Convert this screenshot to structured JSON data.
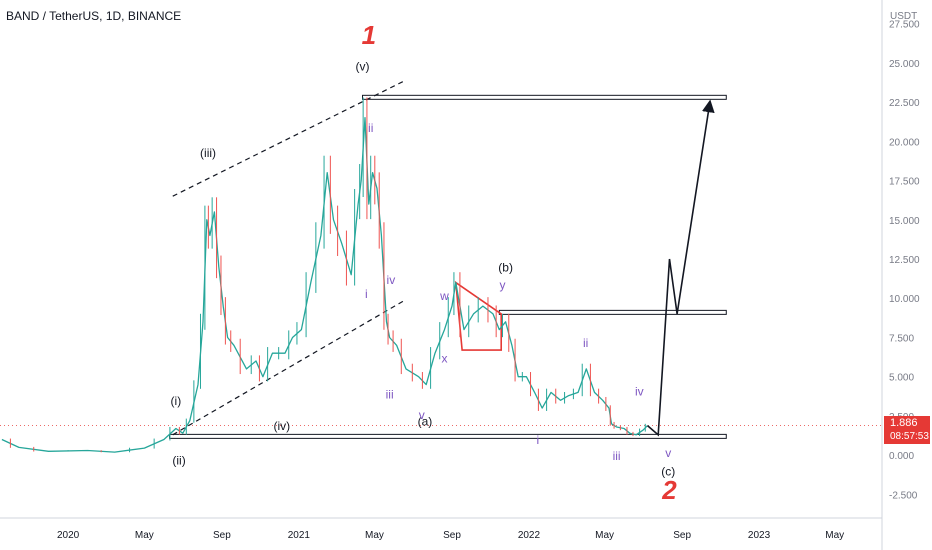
{
  "header": {
    "title": "BAND / TetherUS, 1D, BINANCE"
  },
  "axis": {
    "currency_label": "USDT"
  },
  "price_tag": {
    "price": "1.886",
    "countdown": "08:57:53"
  },
  "chart_data": {
    "type": "line",
    "title": "BAND / TetherUS, 1D, BINANCE",
    "ylabel": "USDT",
    "ylim": [
      -4,
      29
    ],
    "y_ticks": [
      "-2.500",
      "0.000",
      "2.500",
      "5.000",
      "7.500",
      "10.000",
      "12.500",
      "15.000",
      "17.500",
      "20.000",
      "22.500",
      "25.000",
      "27.500"
    ],
    "y_tick_values": [
      -2.5,
      0,
      2.5,
      5,
      7.5,
      10,
      12.5,
      15,
      17.5,
      20,
      22.5,
      25,
      27.5
    ],
    "x_ticks": [
      "2020",
      "May",
      "Sep",
      "2021",
      "May",
      "Sep",
      "2022",
      "May",
      "Sep",
      "2023",
      "May"
    ],
    "x_tick_dates": [
      "2020-01-01",
      "2020-05-01",
      "2020-09-01",
      "2021-01-01",
      "2021-05-01",
      "2021-09-01",
      "2022-01-01",
      "2022-05-01",
      "2022-09-01",
      "2023-01-01",
      "2023-05-01"
    ],
    "xlim": [
      "2019-09-15",
      "2023-07-15"
    ],
    "grid": false,
    "series": [
      {
        "points": [
          [
            "2019-09-18",
            1.0
          ],
          [
            "2019-10-15",
            0.5
          ],
          [
            "2019-12-01",
            0.25
          ],
          [
            "2020-02-01",
            0.3
          ],
          [
            "2020-03-15",
            0.2
          ],
          [
            "2020-05-01",
            0.45
          ],
          [
            "2020-06-01",
            1.0
          ],
          [
            "2020-06-20",
            1.7
          ],
          [
            "2020-07-01",
            1.4
          ],
          [
            "2020-07-12",
            2.2
          ],
          [
            "2020-07-25",
            4.5
          ],
          [
            "2020-08-02",
            8.5
          ],
          [
            "2020-08-08",
            15.0
          ],
          [
            "2020-08-13",
            14.0
          ],
          [
            "2020-08-20",
            15.5
          ],
          [
            "2020-08-27",
            12.0
          ],
          [
            "2020-09-03",
            9.5
          ],
          [
            "2020-09-10",
            7.5
          ],
          [
            "2020-09-20",
            7.0
          ],
          [
            "2020-10-10",
            5.5
          ],
          [
            "2020-10-25",
            6.0
          ],
          [
            "2020-11-05",
            5.0
          ],
          [
            "2020-11-20",
            6.5
          ],
          [
            "2020-12-10",
            6.5
          ],
          [
            "2020-12-22",
            7.5
          ],
          [
            "2021-01-05",
            8.0
          ],
          [
            "2021-01-20",
            11.0
          ],
          [
            "2021-02-05",
            14.0
          ],
          [
            "2021-02-15",
            18.0
          ],
          [
            "2021-02-25",
            15.0
          ],
          [
            "2021-03-10",
            13.5
          ],
          [
            "2021-03-25",
            11.5
          ],
          [
            "2021-04-05",
            16.0
          ],
          [
            "2021-04-10",
            17.5
          ],
          [
            "2021-04-16",
            21.5
          ],
          [
            "2021-04-22",
            16.0
          ],
          [
            "2021-04-28",
            18.0
          ],
          [
            "2021-05-05",
            17.0
          ],
          [
            "2021-05-12",
            14.0
          ],
          [
            "2021-05-20",
            8.5
          ],
          [
            "2021-05-25",
            7.5
          ],
          [
            "2021-06-05",
            7.0
          ],
          [
            "2021-06-20",
            5.5
          ],
          [
            "2021-07-10",
            5.0
          ],
          [
            "2021-07-22",
            4.5
          ],
          [
            "2021-08-05",
            6.5
          ],
          [
            "2021-08-20",
            8.0
          ],
          [
            "2021-09-01",
            9.5
          ],
          [
            "2021-09-07",
            11.0
          ],
          [
            "2021-09-20",
            8.0
          ],
          [
            "2021-10-05",
            9.0
          ],
          [
            "2021-10-20",
            9.5
          ],
          [
            "2021-11-05",
            9.0
          ],
          [
            "2021-11-15",
            8.0
          ],
          [
            "2021-11-25",
            8.5
          ],
          [
            "2021-12-05",
            7.0
          ],
          [
            "2021-12-15",
            5.0
          ],
          [
            "2021-12-28",
            5.0
          ],
          [
            "2022-01-10",
            4.0
          ],
          [
            "2022-01-22",
            3.0
          ],
          [
            "2022-02-05",
            4.0
          ],
          [
            "2022-02-20",
            3.5
          ],
          [
            "2022-03-05",
            3.8
          ],
          [
            "2022-03-20",
            4.0
          ],
          [
            "2022-04-02",
            5.5
          ],
          [
            "2022-04-15",
            4.0
          ],
          [
            "2022-04-28",
            3.5
          ],
          [
            "2022-05-08",
            3.0
          ],
          [
            "2022-05-12",
            2.0
          ],
          [
            "2022-05-20",
            1.8
          ],
          [
            "2022-06-01",
            1.7
          ],
          [
            "2022-06-10",
            1.4
          ],
          [
            "2022-06-20",
            1.3
          ],
          [
            "2022-07-01",
            1.6
          ],
          [
            "2022-07-08",
            1.886
          ]
        ]
      }
    ],
    "projection_path": [
      [
        "2022-07-08",
        1.886
      ],
      [
        "2022-07-25",
        1.3
      ],
      [
        "2022-08-12",
        12.5
      ],
      [
        "2022-08-24",
        9.0
      ],
      [
        "2022-10-15",
        22.5
      ]
    ],
    "horizontal_levels": [
      {
        "price": 22.8,
        "from": "2021-04-12",
        "to": "2022-11-10"
      },
      {
        "price": 9.1,
        "from": "2021-11-15",
        "to": "2022-11-10"
      },
      {
        "price": 1.2,
        "from": "2020-06-10",
        "to": "2022-11-10"
      }
    ],
    "trend_channel": {
      "upper": [
        [
          "2020-06-15",
          16.5
        ],
        [
          "2021-06-15",
          23.8
        ]
      ],
      "lower": [
        [
          "2020-06-15",
          1.3
        ],
        [
          "2021-06-15",
          9.8
        ]
      ]
    },
    "triangle": [
      [
        "2021-09-07",
        11.0
      ],
      [
        "2021-11-18",
        9.0
      ],
      [
        "2021-11-18",
        6.7
      ],
      [
        "2021-09-17",
        6.7
      ]
    ],
    "wave_labels": [
      {
        "text": "1",
        "date": "2021-04-22",
        "price": 26.2,
        "color": "#e53935",
        "size": "big"
      },
      {
        "text": "2",
        "date": "2022-08-12",
        "price": -2.8,
        "color": "#e53935",
        "size": "big"
      },
      {
        "text": "(v)",
        "date": "2021-04-12",
        "price": 24.5,
        "color": "#131722",
        "size": "normal"
      },
      {
        "text": "(iii)",
        "date": "2020-08-10",
        "price": 19.0,
        "color": "#131722",
        "size": "normal"
      },
      {
        "text": "(i)",
        "date": "2020-06-20",
        "price": 3.2,
        "color": "#131722",
        "size": "normal"
      },
      {
        "text": "(ii)",
        "date": "2020-06-25",
        "price": -0.6,
        "color": "#131722",
        "size": "normal"
      },
      {
        "text": "(iv)",
        "date": "2020-12-05",
        "price": 1.6,
        "color": "#131722",
        "size": "normal"
      },
      {
        "text": "(a)",
        "date": "2021-07-20",
        "price": 1.9,
        "color": "#131722",
        "size": "normal"
      },
      {
        "text": "(b)",
        "date": "2021-11-25",
        "price": 11.7,
        "color": "#131722",
        "size": "normal"
      },
      {
        "text": "(c)",
        "date": "2022-08-10",
        "price": -1.3,
        "color": "#131722",
        "size": "normal"
      },
      {
        "text": "ii",
        "date": "2021-04-25",
        "price": 20.6,
        "color": "#7e57c2",
        "size": "normal"
      },
      {
        "text": "i",
        "date": "2021-04-18",
        "price": 10.0,
        "color": "#7e57c2",
        "size": "normal"
      },
      {
        "text": "iv",
        "date": "2021-05-27",
        "price": 10.9,
        "color": "#7e57c2",
        "size": "normal"
      },
      {
        "text": "iii",
        "date": "2021-05-25",
        "price": 3.6,
        "color": "#7e57c2",
        "size": "normal"
      },
      {
        "text": "v",
        "date": "2021-07-15",
        "price": 2.3,
        "color": "#7e57c2",
        "size": "normal"
      },
      {
        "text": "w",
        "date": "2021-08-20",
        "price": 9.9,
        "color": "#7e57c2",
        "size": "normal"
      },
      {
        "text": "x",
        "date": "2021-08-20",
        "price": 5.9,
        "color": "#7e57c2",
        "size": "normal"
      },
      {
        "text": "y",
        "date": "2021-11-20",
        "price": 10.6,
        "color": "#7e57c2",
        "size": "normal"
      },
      {
        "text": "i",
        "date": "2022-01-15",
        "price": 0.7,
        "color": "#7e57c2",
        "size": "normal"
      },
      {
        "text": "ii",
        "date": "2022-04-01",
        "price": 6.9,
        "color": "#7e57c2",
        "size": "normal"
      },
      {
        "text": "iii",
        "date": "2022-05-20",
        "price": -0.3,
        "color": "#7e57c2",
        "size": "normal"
      },
      {
        "text": "iv",
        "date": "2022-06-25",
        "price": 3.8,
        "color": "#7e57c2",
        "size": "normal"
      },
      {
        "text": "v",
        "date": "2022-08-10",
        "price": -0.1,
        "color": "#7e57c2",
        "size": "normal"
      }
    ],
    "last_price": 1.886,
    "colors": {
      "candle": "#26a69a",
      "candle_down": "#ef5350",
      "accent_red": "#e53935",
      "purple": "#7e57c2"
    }
  }
}
